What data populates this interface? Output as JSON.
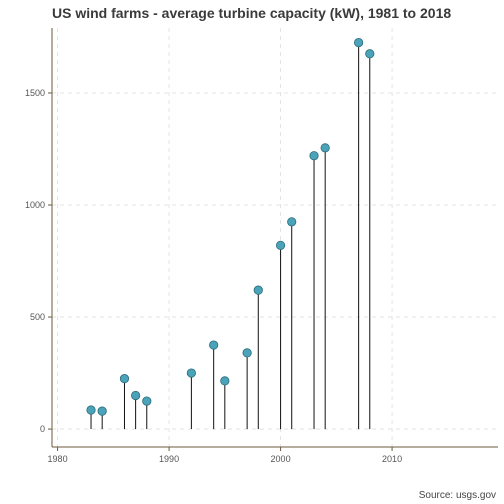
{
  "chart_data": {
    "type": "lollipop",
    "title": "US wind farms - average turbine capacity (kW), 1981 to 2018",
    "caption": "Source: usgs.gov",
    "xlabel": "",
    "ylabel": "",
    "xlim": [
      1979.5,
      2019.5
    ],
    "ylim": [
      -80,
      1790
    ],
    "x_ticks": [
      1980,
      1990,
      2000,
      2010
    ],
    "y_ticks": [
      0,
      500,
      1000,
      1500
    ],
    "grid": true,
    "point_color": "#4aa3b8",
    "stem_color": "#111111",
    "points": [
      {
        "x": 1983,
        "y": 85
      },
      {
        "x": 1984,
        "y": 80
      },
      {
        "x": 1986,
        "y": 225
      },
      {
        "x": 1987,
        "y": 150
      },
      {
        "x": 1988,
        "y": 125
      },
      {
        "x": 1992,
        "y": 250
      },
      {
        "x": 1994,
        "y": 375
      },
      {
        "x": 1995,
        "y": 215
      },
      {
        "x": 1997,
        "y": 340
      },
      {
        "x": 1998,
        "y": 620
      },
      {
        "x": 2000,
        "y": 820
      },
      {
        "x": 2001,
        "y": 925
      },
      {
        "x": 2003,
        "y": 1220
      },
      {
        "x": 2004,
        "y": 1255
      },
      {
        "x": 2007,
        "y": 1725
      },
      {
        "x": 2008,
        "y": 1675
      }
    ]
  }
}
